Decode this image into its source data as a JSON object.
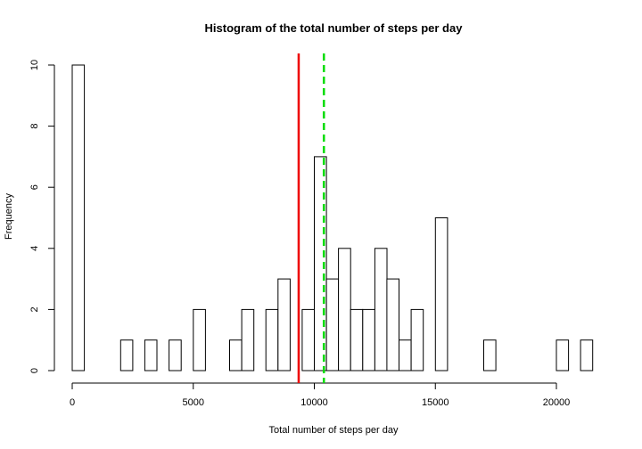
{
  "chart_data": {
    "type": "bar",
    "title": "Histogram of the total number of steps per day",
    "xlabel": "Total number of steps per day",
    "ylabel": "Frequency",
    "bin_width": 500,
    "bins_start": [
      0,
      500,
      1000,
      1500,
      2000,
      2500,
      3000,
      3500,
      4000,
      4500,
      5000,
      5500,
      6000,
      6500,
      7000,
      7500,
      8000,
      8500,
      9000,
      9500,
      10000,
      10500,
      11000,
      11500,
      12000,
      12500,
      13000,
      13500,
      14000,
      14500,
      15000,
      15500,
      16000,
      16500,
      17000,
      17500,
      18000,
      18500,
      19000,
      19500,
      20000,
      20500,
      21000
    ],
    "values": [
      10,
      0,
      0,
      0,
      1,
      0,
      1,
      0,
      1,
      0,
      2,
      0,
      0,
      1,
      2,
      0,
      2,
      3,
      0,
      2,
      7,
      3,
      4,
      2,
      2,
      4,
      3,
      1,
      2,
      0,
      5,
      0,
      0,
      0,
      1,
      0,
      0,
      0,
      0,
      0,
      1,
      0,
      1
    ],
    "xlim": [
      0,
      21500
    ],
    "ylim": [
      0,
      10
    ],
    "x_ticks": [
      0,
      5000,
      10000,
      15000,
      20000
    ],
    "y_ticks": [
      0,
      2,
      4,
      6,
      8,
      10
    ],
    "reference_lines": [
      {
        "x": 9354,
        "color": "#ee0000",
        "style": "solid"
      },
      {
        "x": 10395,
        "color": "#00dd00",
        "style": "dashed"
      }
    ],
    "grid": false
  }
}
